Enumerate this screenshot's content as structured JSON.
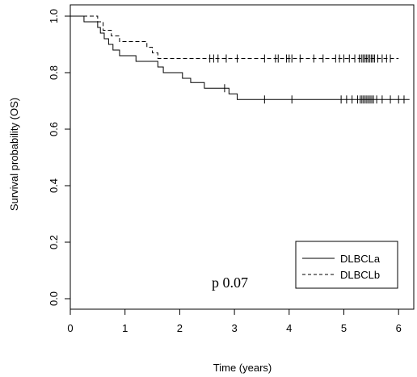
{
  "chart_data": {
    "type": "line",
    "title": "",
    "xlabel": "Time (years)",
    "ylabel": "Survival probability (OS)",
    "xlim": [
      0,
      6.2
    ],
    "ylim": [
      0,
      1
    ],
    "x_ticks": [
      0,
      1,
      2,
      3,
      4,
      5,
      6
    ],
    "y_ticks": [
      0.0,
      0.2,
      0.4,
      0.6,
      0.8,
      1.0
    ],
    "x_tick_labels": [
      "0",
      "1",
      "2",
      "3",
      "4",
      "5",
      "6"
    ],
    "y_tick_labels": [
      "0.0",
      "0.2",
      "0.4",
      "0.6",
      "0.8",
      "1.0"
    ],
    "grid": false,
    "legend_position": "bottom-right",
    "annotation": "p 0.07",
    "series": [
      {
        "name": "DLBCLa",
        "line_style": "solid",
        "color": "#000000",
        "steps": [
          [
            0,
            1.0
          ],
          [
            0.25,
            0.98
          ],
          [
            0.5,
            0.96
          ],
          [
            0.55,
            0.94
          ],
          [
            0.62,
            0.92
          ],
          [
            0.7,
            0.9
          ],
          [
            0.78,
            0.88
          ],
          [
            0.9,
            0.86
          ],
          [
            1.2,
            0.84
          ],
          [
            1.6,
            0.82
          ],
          [
            1.7,
            0.8
          ],
          [
            2.05,
            0.78
          ],
          [
            2.2,
            0.765
          ],
          [
            2.45,
            0.745
          ],
          [
            2.9,
            0.725
          ],
          [
            3.05,
            0.705
          ],
          [
            6.2,
            0.705
          ]
        ],
        "censors": [
          2.82,
          3.55,
          4.05,
          4.95,
          5.05,
          5.15,
          5.25,
          5.3,
          5.33,
          5.36,
          5.39,
          5.42,
          5.45,
          5.48,
          5.51,
          5.54,
          5.6,
          5.7,
          5.85,
          6.0,
          6.1
        ]
      },
      {
        "name": "DLBCLb",
        "line_style": "dashed",
        "color": "#000000",
        "steps": [
          [
            0,
            1.0
          ],
          [
            0.5,
            0.98
          ],
          [
            0.6,
            0.95
          ],
          [
            0.75,
            0.93
          ],
          [
            0.9,
            0.91
          ],
          [
            1.4,
            0.89
          ],
          [
            1.5,
            0.87
          ],
          [
            1.6,
            0.85
          ],
          [
            6.0,
            0.85
          ]
        ],
        "censors": [
          2.55,
          2.62,
          2.7,
          2.85,
          3.05,
          3.55,
          3.75,
          3.8,
          3.95,
          4.0,
          4.05,
          4.2,
          4.45,
          4.62,
          4.85,
          4.92,
          5.0,
          5.1,
          5.2,
          5.28,
          5.32,
          5.35,
          5.38,
          5.41,
          5.44,
          5.47,
          5.5,
          5.53,
          5.56,
          5.62,
          5.7,
          5.78,
          5.85
        ]
      }
    ]
  }
}
